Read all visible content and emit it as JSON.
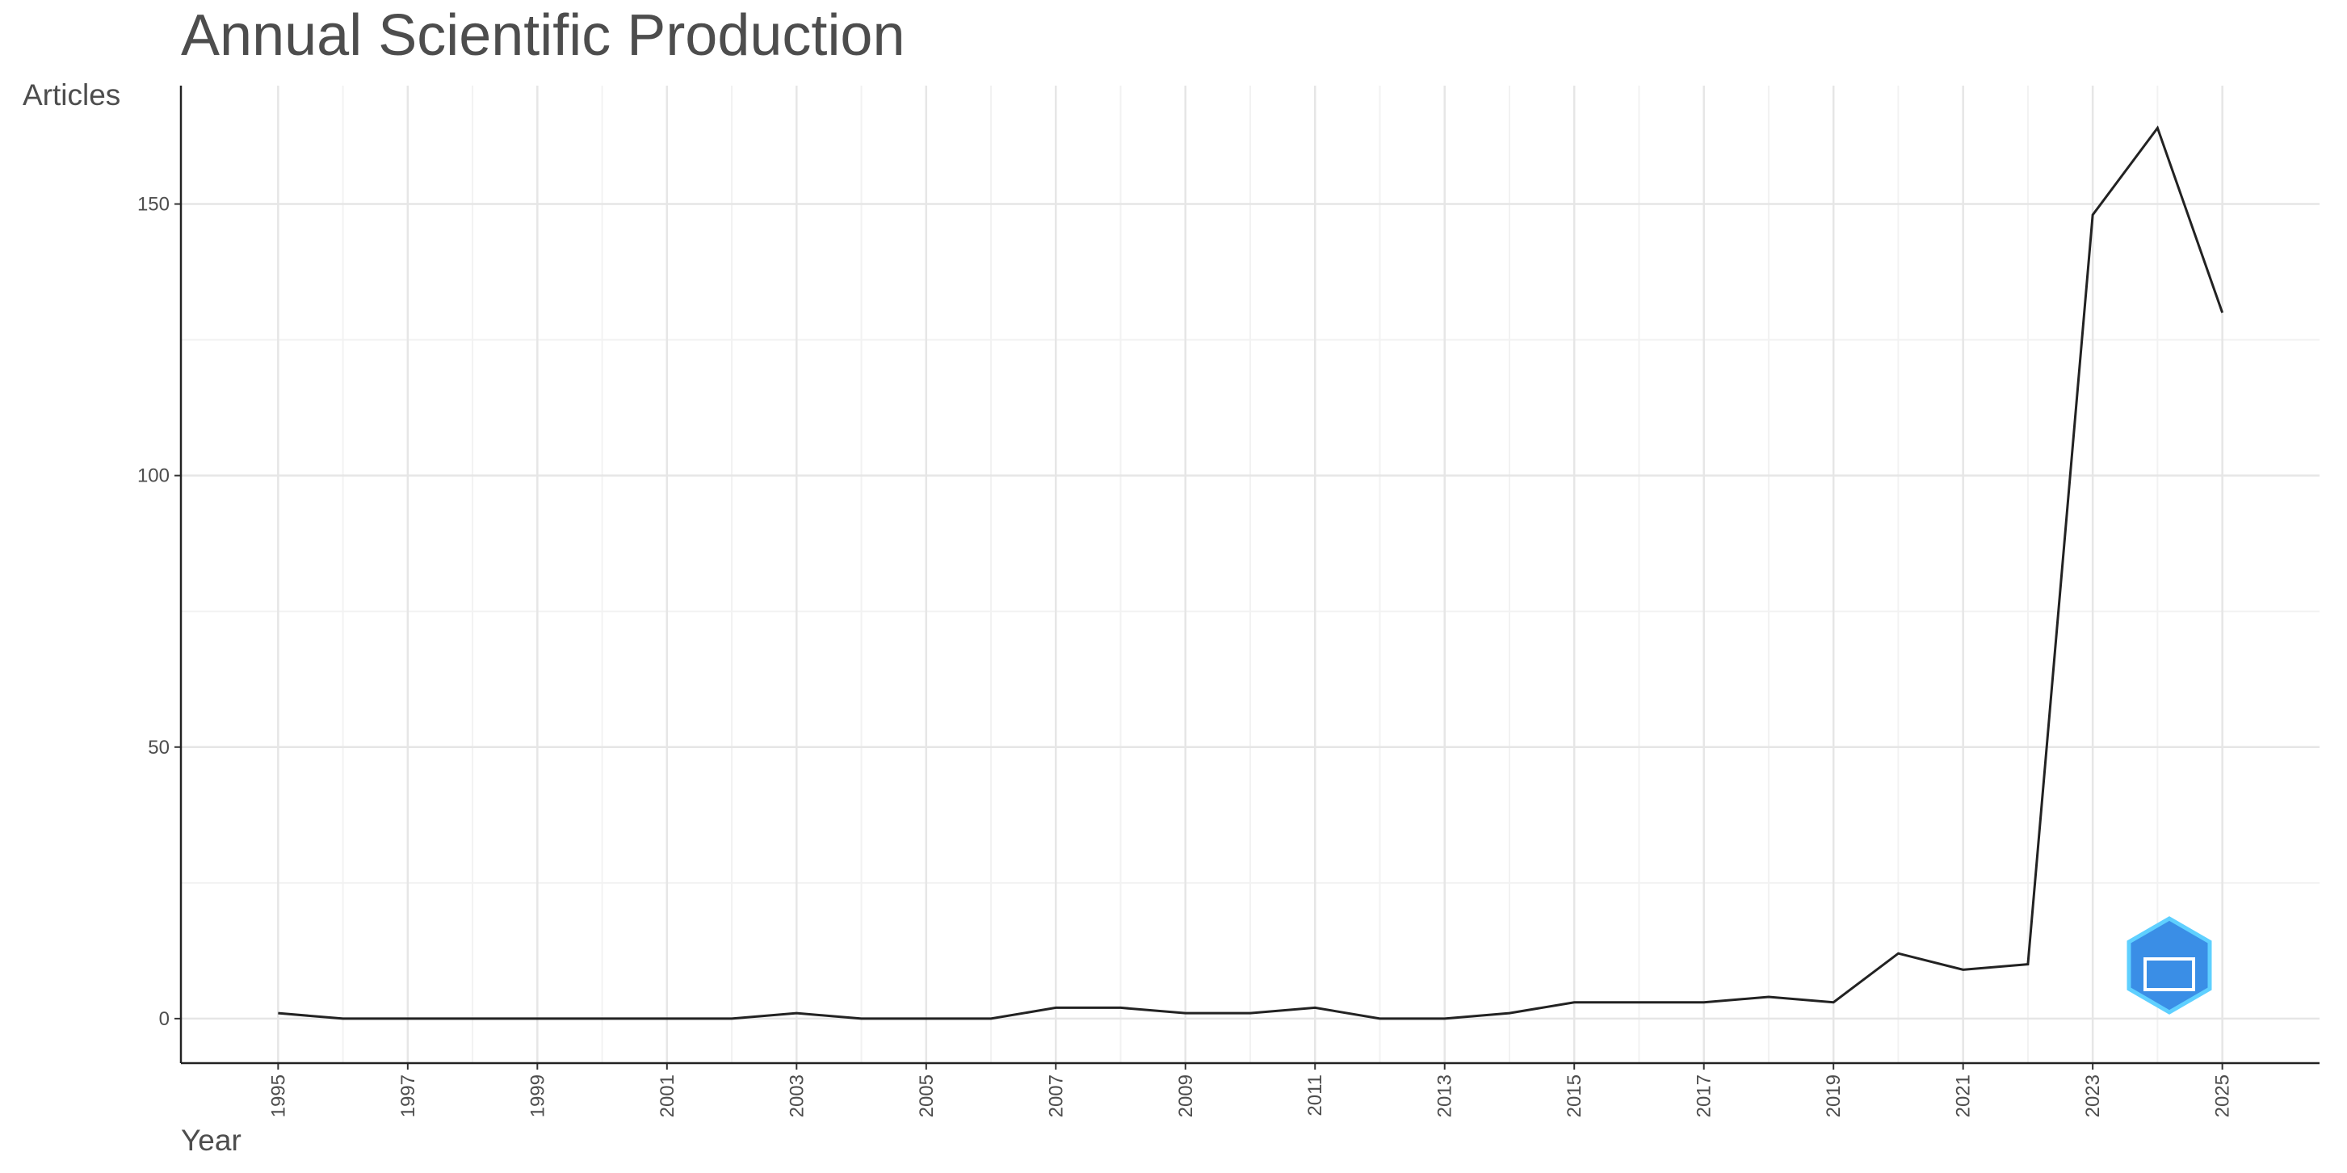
{
  "chart_data": {
    "type": "line",
    "title": "Annual Scientific Production",
    "x_label": "Year",
    "y_label": "Articles",
    "x": [
      1995,
      1996,
      1997,
      1998,
      1999,
      2000,
      2001,
      2002,
      2003,
      2004,
      2005,
      2006,
      2007,
      2008,
      2009,
      2010,
      2011,
      2012,
      2013,
      2014,
      2015,
      2016,
      2017,
      2018,
      2019,
      2020,
      2021,
      2022,
      2023,
      2024,
      2025
    ],
    "series": [
      {
        "name": "Articles",
        "color": "#222222",
        "values": [
          1,
          0,
          0,
          0,
          0,
          0,
          0,
          0,
          1,
          0,
          0,
          0,
          2,
          2,
          1,
          1,
          2,
          0,
          0,
          1,
          3,
          3,
          3,
          4,
          3,
          12,
          9,
          10,
          148,
          164,
          130
        ]
      }
    ],
    "xlim": [
      1993.5,
      2026.5
    ],
    "ylim": [
      -8.2,
      171.8
    ],
    "xticks": [
      1995,
      1997,
      1999,
      2001,
      2003,
      2005,
      2007,
      2009,
      2011,
      2013,
      2015,
      2017,
      2019,
      2021,
      2023,
      2025
    ],
    "yticks": [
      0,
      50,
      100,
      150
    ],
    "grid": true
  }
}
